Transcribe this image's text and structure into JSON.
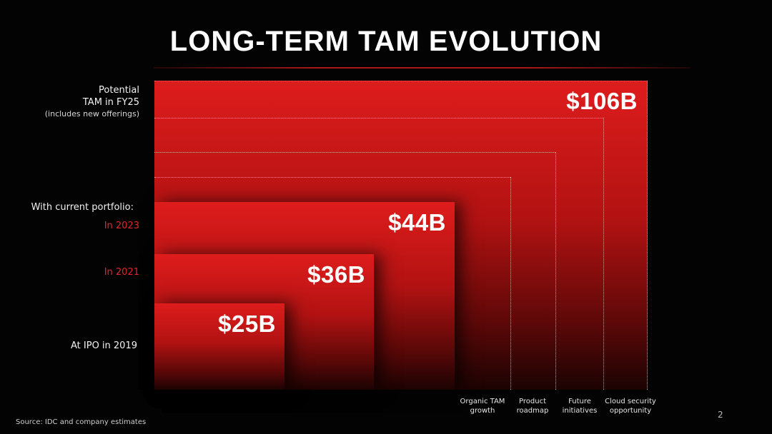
{
  "title": "LONG-TERM TAM EVOLUTION",
  "labels": {
    "potential_line1": "Potential",
    "potential_line2": "TAM in FY25",
    "potential_line3": "(includes new offerings)",
    "current_portfolio": "With current portfolio:",
    "in_2023": "In 2023",
    "in_2021": "In 2021",
    "ipo_2019": "At IPO in 2019"
  },
  "blocks": [
    {
      "label": "At IPO in 2019",
      "display": "$25B",
      "value": 25
    },
    {
      "label": "In 2021",
      "display": "$36B",
      "value": 36
    },
    {
      "label": "In 2023",
      "display": "$44B",
      "value": 44
    },
    {
      "label": "Potential TAM in FY25",
      "display": "$106B",
      "value": 106
    }
  ],
  "categories": [
    {
      "line1": "Organic TAM",
      "line2": "growth"
    },
    {
      "line1": "Product",
      "line2": "roadmap"
    },
    {
      "line1": "Future",
      "line2": "initiatives"
    },
    {
      "line1": "Cloud security",
      "line2": "opportunity"
    }
  ],
  "source": "Source: IDC and company estimates",
  "page_number": "2",
  "colors": {
    "accent": "#e0262b",
    "block_top": "#de1c1c",
    "background": "#030303"
  }
}
